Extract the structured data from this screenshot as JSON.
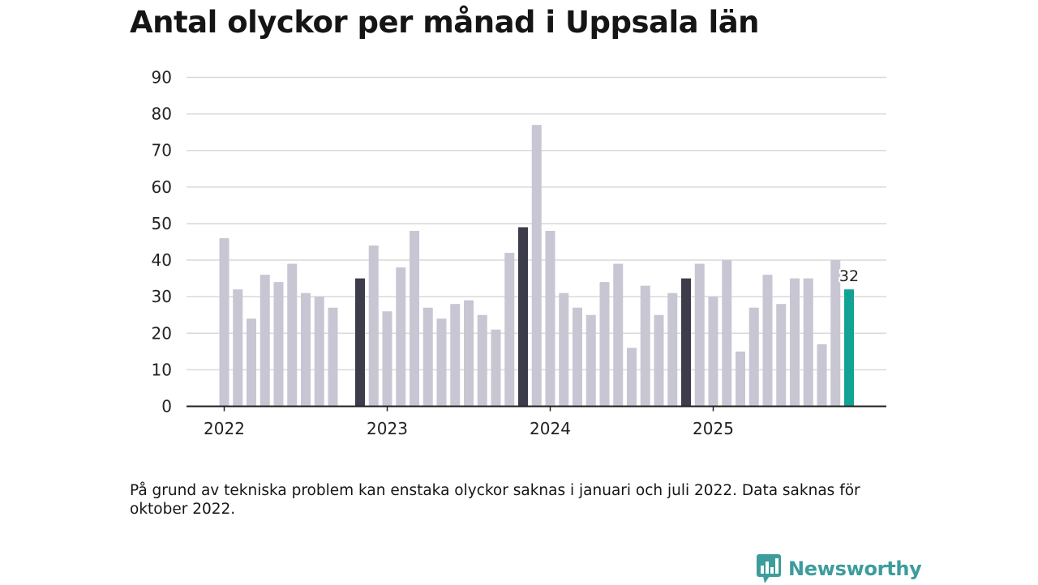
{
  "title": "Antal olyckor per månad i Uppsala län",
  "note": "På grund av tekniska problem kan enstaka olyckor saknas i januari och juli 2022. Data saknas för oktober 2022.",
  "brand": {
    "name": "Newsworthy",
    "logo_icon": "bar-chart-speech-bubble-icon",
    "color": "#3d9c9c"
  },
  "colors": {
    "bar": "#c8c6d2",
    "november": "#3d3c4b",
    "latest": "#13a394",
    "grid": "#d9d9d9",
    "axis": "#222222"
  },
  "chart_data": {
    "type": "bar",
    "title": "Antal olyckor per månad i Uppsala län",
    "xlabel": "",
    "ylabel": "",
    "ylim": [
      0,
      90
    ],
    "yticks": [
      0,
      10,
      20,
      30,
      40,
      50,
      60,
      70,
      80,
      90
    ],
    "xtick_labels": [
      {
        "label": "2022",
        "index": 0
      },
      {
        "label": "2023",
        "index": 12
      },
      {
        "label": "2024",
        "index": 24
      },
      {
        "label": "2025",
        "index": 36
      }
    ],
    "start": "2022-01",
    "values": [
      46,
      32,
      24,
      36,
      34,
      39,
      31,
      30,
      27,
      null,
      35,
      44,
      26,
      38,
      48,
      27,
      24,
      28,
      29,
      25,
      21,
      42,
      49,
      77,
      48,
      31,
      27,
      25,
      34,
      39,
      16,
      33,
      25,
      31,
      35,
      39,
      30,
      40,
      15,
      27,
      36,
      28,
      35,
      35,
      17,
      40,
      32
    ],
    "highlight_dark_indices": [
      10,
      22,
      34
    ],
    "highlight_latest_index": 46,
    "data_label": {
      "index": 46,
      "text": "32"
    }
  }
}
